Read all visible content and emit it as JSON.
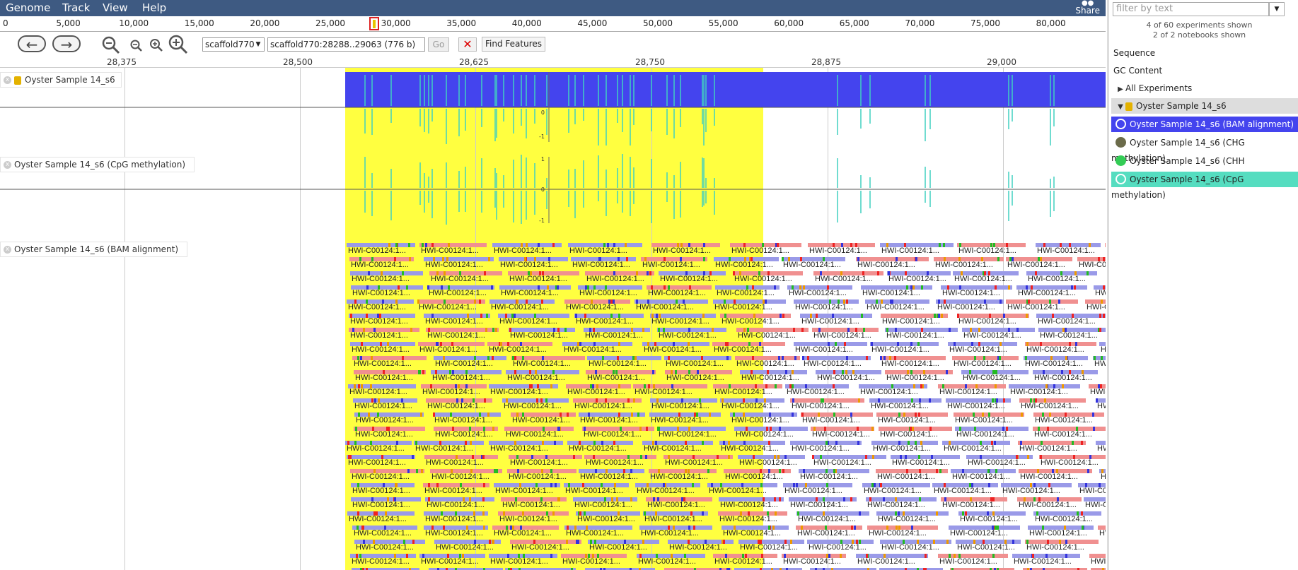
{
  "menu": {
    "genome": "Genome",
    "track": "Track",
    "view": "View",
    "help": "Help",
    "share": "Share"
  },
  "overview_ruler": {
    "labels": [
      "0",
      "5,000",
      "10,000",
      "15,000",
      "20,000",
      "25,000",
      "30,000",
      "35,000",
      "40,000",
      "45,000",
      "50,000",
      "55,000",
      "60,000",
      "65,000",
      "70,000",
      "75,000",
      "80,000"
    ]
  },
  "toolbar": {
    "back_icon": "arrow-left-icon",
    "forward_icon": "arrow-right-icon",
    "refseq_value": "scaffold770",
    "location_value": "scaffold770:28288..29063 (776 b)",
    "go_label": "Go",
    "clear_highlight_label": "✕",
    "find_label": "Find Features"
  },
  "scale": {
    "labels": [
      "28,375",
      "28,500",
      "28,625",
      "28,750",
      "28,875",
      "29,000"
    ]
  },
  "tracks": {
    "t1": "Oyster Sample 14_s6",
    "t2": "Oyster Sample 14_s6 (CpG methylation)",
    "t3": "Oyster Sample 14_s6 (BAM alignment)"
  },
  "y_ticks": {
    "top": "1",
    "mid": "0",
    "bot": "-1"
  },
  "read_label": "HWI-C00124:1...",
  "sidebar": {
    "filter_placeholder": "filter by text",
    "stat1": "4 of 60 experiments shown",
    "stat2": "2 of 2 notebooks shown",
    "items": [
      {
        "label": "Sequence"
      },
      {
        "label": "GC Content"
      },
      {
        "label": "All Experiments"
      },
      {
        "label": "Oyster Sample 14_s6"
      },
      {
        "label": "Oyster Sample 14_s6 (BAM alignment)",
        "color": "#4444ee"
      },
      {
        "label": "Oyster Sample 14_s6 (CHG methylation)",
        "color": "#6b6b4a"
      },
      {
        "label": "Oyster Sample 14_s6 (CHH methylation)",
        "color": "#33cc55"
      },
      {
        "label": "Oyster Sample 14_s6 (CpG methylation)",
        "color": "#55ddc0"
      }
    ]
  },
  "colors": {
    "menubar": "#3e5a82",
    "highlight": "#ffff40",
    "coverage": "#4444ee",
    "methylation": "#40d0c0",
    "selected_bam": "#4444ee",
    "selected_cpg": "#55ddc0"
  }
}
